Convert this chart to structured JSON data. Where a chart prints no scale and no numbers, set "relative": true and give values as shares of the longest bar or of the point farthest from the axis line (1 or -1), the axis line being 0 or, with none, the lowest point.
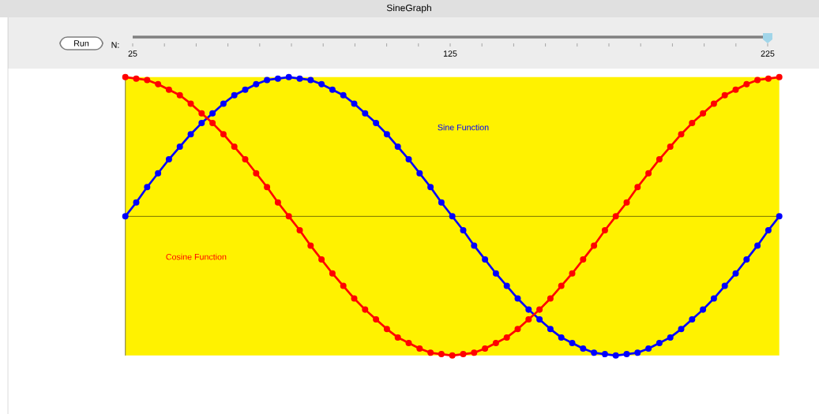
{
  "chart_data": {
    "type": "line",
    "title": "SineGraph",
    "relative": true,
    "marker": "circle",
    "categories": [
      null,
      null,
      null,
      null,
      null,
      null,
      null,
      null,
      null,
      null,
      null,
      null,
      null,
      null,
      null,
      null,
      null,
      null,
      null,
      null,
      null,
      null,
      null,
      null,
      null,
      null,
      null,
      null,
      null,
      null,
      null,
      null,
      null,
      null,
      null,
      null,
      null,
      null,
      null,
      null,
      null,
      null,
      null,
      null,
      null,
      null,
      null,
      null,
      null,
      null,
      null,
      null,
      null,
      null,
      null,
      null,
      null,
      null,
      null,
      null,
      null
    ],
    "series": [
      {
        "name": "Sine Function",
        "color": "#0000ff",
        "values": [
          0,
          0.1,
          0.21,
          0.31,
          0.41,
          0.5,
          0.59,
          0.67,
          0.74,
          0.81,
          0.87,
          0.91,
          0.95,
          0.98,
          0.99,
          1,
          0.99,
          0.98,
          0.95,
          0.91,
          0.87,
          0.81,
          0.74,
          0.67,
          0.59,
          0.5,
          0.41,
          0.31,
          0.21,
          0.1,
          0,
          -0.1,
          -0.21,
          -0.31,
          -0.41,
          -0.5,
          -0.59,
          -0.67,
          -0.74,
          -0.81,
          -0.87,
          -0.91,
          -0.95,
          -0.98,
          -0.99,
          -1,
          -0.99,
          -0.98,
          -0.95,
          -0.91,
          -0.87,
          -0.81,
          -0.74,
          -0.67,
          -0.59,
          -0.5,
          -0.41,
          -0.31,
          -0.21,
          -0.1,
          0
        ]
      },
      {
        "name": "Cosine Function",
        "color": "#ff0000",
        "values": [
          1,
          0.99,
          0.98,
          0.95,
          0.91,
          0.87,
          0.81,
          0.74,
          0.67,
          0.59,
          0.5,
          0.41,
          0.31,
          0.21,
          0.1,
          0,
          -0.1,
          -0.21,
          -0.31,
          -0.41,
          -0.5,
          -0.59,
          -0.67,
          -0.74,
          -0.81,
          -0.87,
          -0.91,
          -0.95,
          -0.98,
          -0.99,
          -1,
          -0.99,
          -0.98,
          -0.95,
          -0.91,
          -0.87,
          -0.81,
          -0.74,
          -0.67,
          -0.59,
          -0.5,
          -0.41,
          -0.31,
          -0.21,
          -0.1,
          0,
          0.1,
          0.21,
          0.31,
          0.41,
          0.5,
          0.59,
          0.67,
          0.74,
          0.81,
          0.87,
          0.91,
          0.95,
          0.98,
          0.99,
          1
        ]
      }
    ],
    "annotations": [
      "Run",
      "N:",
      "25",
      "125",
      "225"
    ]
  }
}
